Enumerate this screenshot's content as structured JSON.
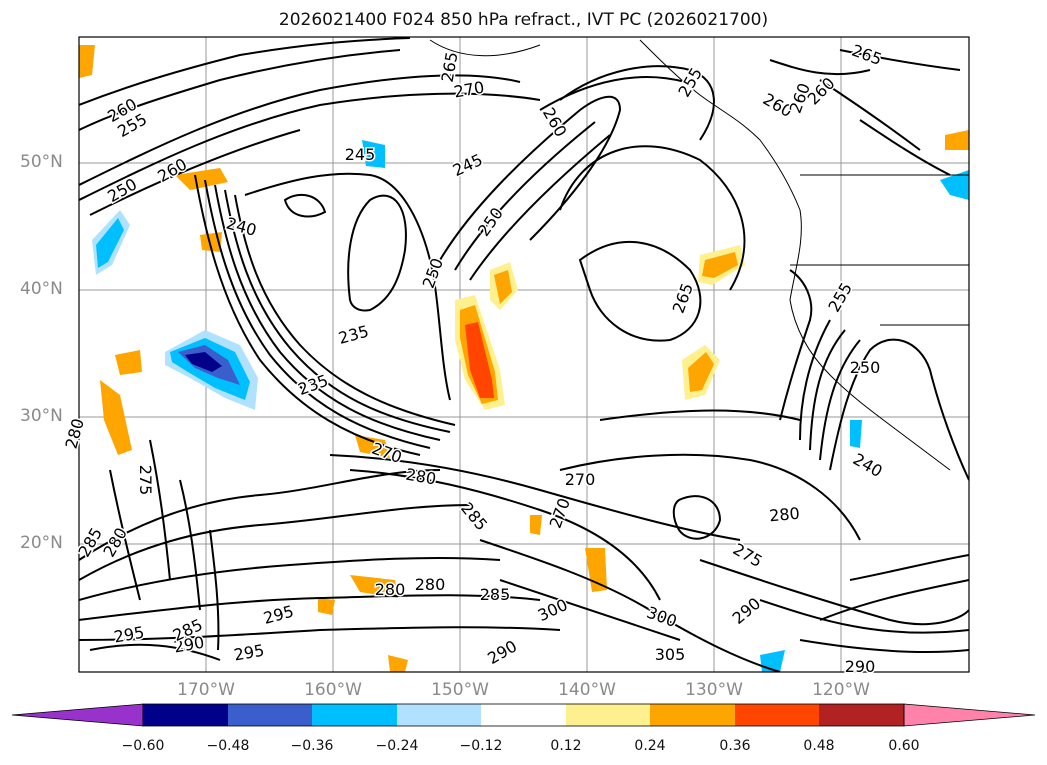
{
  "title": "2026021400 F024 850 hPa refract., IVT PC (2026021700)",
  "latitude_labels": [
    "50°N",
    "40°N",
    "30°N",
    "20°N"
  ],
  "longitude_labels": [
    "170°W",
    "160°W",
    "150°W",
    "140°W",
    "130°W",
    "120°W"
  ],
  "colorbar": {
    "ticks": [
      "−0.60",
      "−0.48",
      "−0.36",
      "−0.24",
      "−0.12",
      "0.12",
      "0.24",
      "0.36",
      "0.48",
      "0.60"
    ],
    "colors": [
      "#9932cc",
      "#00008b",
      "#3a5fcd",
      "#00bfff",
      "#b0e2ff",
      "#ffffff",
      "#fff08f",
      "#ffa500",
      "#ff4500",
      "#b22222",
      "#ff82ab"
    ]
  },
  "contour_labels": [
    "260",
    "255",
    "250",
    "260",
    "265",
    "270",
    "260",
    "255",
    "265",
    "260",
    "260",
    "260",
    "245",
    "245",
    "250",
    "240",
    "250",
    "235",
    "235",
    "265",
    "255",
    "250",
    "240",
    "280",
    "275",
    "270",
    "280",
    "285",
    "270",
    "270",
    "280",
    "275",
    "285",
    "280",
    "280",
    "285",
    "290",
    "295",
    "300",
    "300",
    "305",
    "290",
    "295",
    "290",
    "295",
    "290",
    "285",
    "280"
  ]
}
